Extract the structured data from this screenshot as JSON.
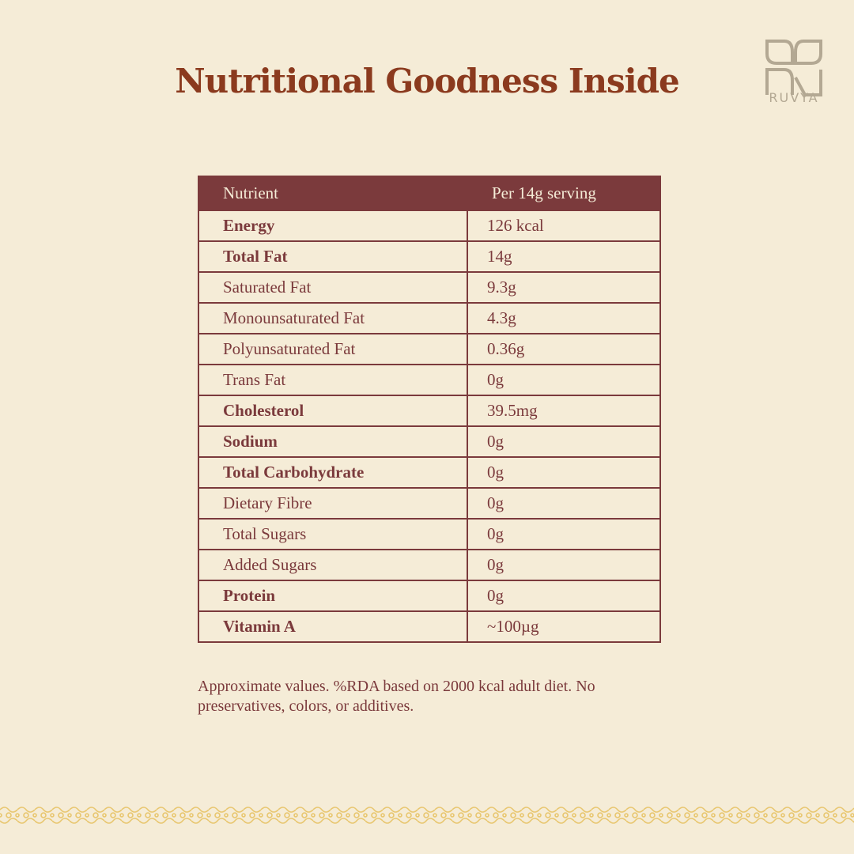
{
  "header": {
    "title": "Nutritional Goodness Inside",
    "brand": "RUVYA"
  },
  "table": {
    "columns": [
      "Nutrient",
      "Per 14g serving"
    ],
    "rows": [
      {
        "nutrient": "Energy",
        "amount": "126 kcal",
        "bold": true
      },
      {
        "nutrient": "Total Fat",
        "amount": "14g",
        "bold": true
      },
      {
        "nutrient": "Saturated Fat",
        "amount": "9.3g",
        "bold": false
      },
      {
        "nutrient": "Monounsaturated Fat",
        "amount": "4.3g",
        "bold": false
      },
      {
        "nutrient": "Polyunsaturated Fat",
        "amount": "0.36g",
        "bold": false
      },
      {
        "nutrient": "Trans Fat",
        "amount": "0g",
        "bold": false
      },
      {
        "nutrient": "Cholesterol",
        "amount": "39.5mg",
        "bold": true
      },
      {
        "nutrient": "Sodium",
        "amount": "0g",
        "bold": true
      },
      {
        "nutrient": "Total Carbohydrate",
        "amount": "0g",
        "bold": true
      },
      {
        "nutrient": "Dietary Fibre",
        "amount": "0g",
        "bold": false
      },
      {
        "nutrient": "Total Sugars",
        "amount": "0g",
        "bold": false
      },
      {
        "nutrient": "Added Sugars",
        "amount": "0g",
        "bold": false
      },
      {
        "nutrient": "Protein",
        "amount": "0g",
        "bold": true
      },
      {
        "nutrient": "Vitamin A",
        "amount": "~100µg",
        "bold": true
      }
    ]
  },
  "footnote": "Approximate values. %RDA based on 2000 kcal adult diet. No preservatives, colors, or additives."
}
